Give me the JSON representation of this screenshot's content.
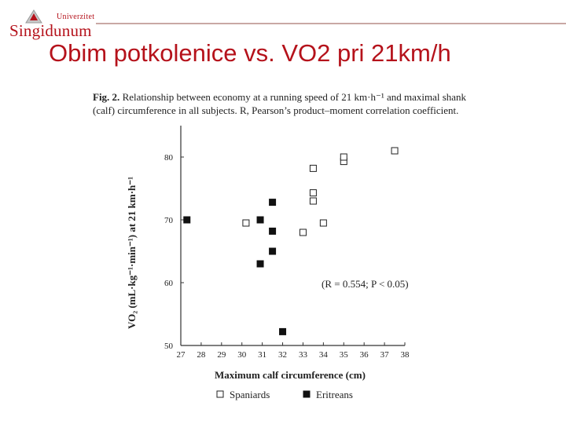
{
  "header": {
    "logo_univerzitet": "Univerzitet",
    "logo_name": "Singidunum",
    "brand_color": "#b5121b"
  },
  "slide": {
    "title": "Obim potkolenice vs. VO2 pri 21km/h"
  },
  "figure": {
    "caption_label": "Fig. 2.",
    "caption_text": "Relationship between economy at a running speed of 21 km·h⁻¹ and maximal shank (calf) circumference in all subjects. R, Pearson’s product–moment correlation coefficient."
  },
  "chart_data": {
    "type": "scatter",
    "xlabel": "Maximum calf circumference (cm)",
    "ylabel": "VO₂ (mL·kg⁻¹·min⁻¹) at 21 km·h⁻¹",
    "xlim": [
      27,
      38
    ],
    "ylim": [
      50,
      85
    ],
    "xticks": [
      27,
      28,
      29,
      30,
      31,
      32,
      33,
      34,
      35,
      36,
      37,
      38
    ],
    "yticks": [
      50,
      60,
      70,
      80
    ],
    "annotation": "(R = 0.554; P < 0.05)",
    "grid": false,
    "legend_position": "bottom",
    "series": [
      {
        "name": "Spaniards",
        "marker": "open-square",
        "color": "#222222",
        "points": [
          [
            30.2,
            69.5
          ],
          [
            33.0,
            68.0
          ],
          [
            33.5,
            73.0
          ],
          [
            33.5,
            74.3
          ],
          [
            33.5,
            78.2
          ],
          [
            34.0,
            69.5
          ],
          [
            35.0,
            79.3
          ],
          [
            35.0,
            80.0
          ],
          [
            37.5,
            81.0
          ]
        ]
      },
      {
        "name": "Eritreans",
        "marker": "filled-square",
        "color": "#111111",
        "points": [
          [
            27.3,
            70.0
          ],
          [
            30.9,
            70.0
          ],
          [
            31.5,
            72.8
          ],
          [
            31.5,
            68.2
          ],
          [
            31.5,
            65.0
          ],
          [
            30.9,
            63.0
          ],
          [
            32.0,
            52.2
          ]
        ]
      }
    ]
  }
}
